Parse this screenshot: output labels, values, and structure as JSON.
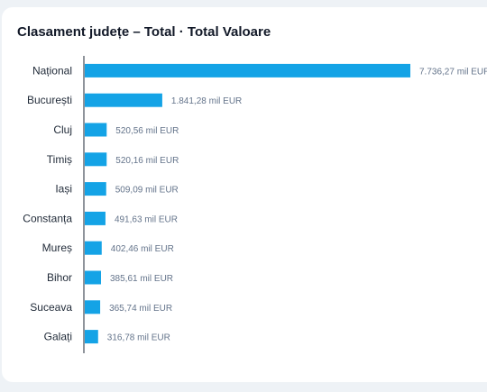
{
  "panel": {
    "title": "Clasament județe – Total · Total Valoare"
  },
  "colors": {
    "bar": "#14a3e6",
    "axis": "#1f2937",
    "card": "#ffffff",
    "background": "#eef2f6"
  },
  "chart_data": {
    "type": "bar",
    "orientation": "horizontal",
    "title": "Clasament județe – Total · Total Valoare",
    "xlabel": "",
    "ylabel": "",
    "unit": "mil EUR",
    "grid": false,
    "legend": "none",
    "xlim": [
      0,
      7736.27
    ],
    "categories": [
      "Național",
      "București",
      "Cluj",
      "Timiș",
      "Iași",
      "Constanța",
      "Mureș",
      "Bihor",
      "Suceava",
      "Galați"
    ],
    "values": [
      7736.27,
      1841.28,
      520.56,
      520.16,
      509.09,
      491.63,
      402.46,
      385.61,
      365.74,
      316.78
    ],
    "value_labels": [
      "7.736,27 mil EUR",
      "1.841,28 mil EUR",
      "520,56 mil EUR",
      "520,16 mil EUR",
      "509,09 mil EUR",
      "491,63 mil EUR",
      "402,46 mil EUR",
      "385,61 mil EUR",
      "365,74 mil EUR",
      "316,78 mil EUR"
    ]
  }
}
